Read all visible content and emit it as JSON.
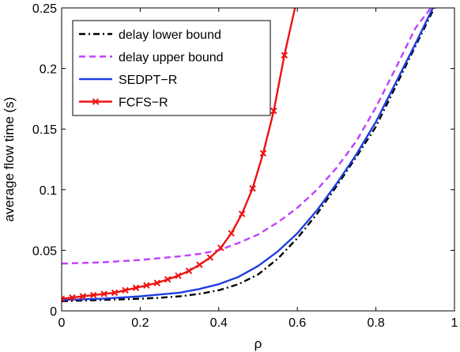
{
  "chart_data": {
    "type": "line",
    "xlabel": "ρ",
    "ylabel": "average flow time (s)",
    "xlim": [
      0,
      1
    ],
    "ylim": [
      0,
      0.25
    ],
    "x_ticks": [
      "0",
      "0.2",
      "0.4",
      "0.6",
      "0.8",
      "1"
    ],
    "y_ticks": [
      "0",
      "0.05",
      "0.1",
      "0.15",
      "0.2",
      "0.25"
    ],
    "grid": false,
    "legend_position": "top-left",
    "series": [
      {
        "name": "delay lower bound",
        "color": "#000000",
        "style": "dashdot",
        "marker": "none",
        "x": [
          0,
          0.05,
          0.1,
          0.15,
          0.2,
          0.25,
          0.3,
          0.35,
          0.4,
          0.45,
          0.5,
          0.55,
          0.6,
          0.65,
          0.7,
          0.75,
          0.8,
          0.85,
          0.9,
          0.95
        ],
        "y": [
          0.008,
          0.0085,
          0.009,
          0.0095,
          0.01,
          0.0108,
          0.012,
          0.014,
          0.017,
          0.022,
          0.03,
          0.043,
          0.06,
          0.08,
          0.103,
          0.127,
          0.152,
          0.185,
          0.218,
          0.251
        ]
      },
      {
        "name": "delay upper bound",
        "color": "#bf40ff",
        "style": "dashed",
        "marker": "none",
        "x": [
          0,
          0.05,
          0.1,
          0.15,
          0.2,
          0.25,
          0.3,
          0.35,
          0.4,
          0.45,
          0.5,
          0.55,
          0.6,
          0.65,
          0.7,
          0.75,
          0.8,
          0.85,
          0.9,
          0.94
        ],
        "y": [
          0.039,
          0.0395,
          0.04,
          0.041,
          0.042,
          0.0435,
          0.045,
          0.047,
          0.05,
          0.056,
          0.063,
          0.073,
          0.085,
          0.1,
          0.118,
          0.14,
          0.168,
          0.2,
          0.233,
          0.25
        ]
      },
      {
        "name": "SEDPT−R",
        "color": "#1f3fe0",
        "style": "solid",
        "marker": "none",
        "x": [
          0,
          0.05,
          0.1,
          0.15,
          0.2,
          0.25,
          0.3,
          0.35,
          0.4,
          0.45,
          0.5,
          0.55,
          0.6,
          0.65,
          0.7,
          0.75,
          0.8,
          0.85,
          0.9,
          0.945
        ],
        "y": [
          0.009,
          0.0095,
          0.01,
          0.011,
          0.012,
          0.0135,
          0.015,
          0.018,
          0.022,
          0.028,
          0.037,
          0.049,
          0.064,
          0.083,
          0.105,
          0.129,
          0.156,
          0.188,
          0.22,
          0.25
        ]
      },
      {
        "name": "FCFS−R",
        "color": "#ee1111",
        "style": "solid",
        "marker": "x",
        "x": [
          0,
          0.027,
          0.054,
          0.081,
          0.108,
          0.135,
          0.162,
          0.189,
          0.216,
          0.243,
          0.27,
          0.297,
          0.324,
          0.351,
          0.378,
          0.405,
          0.432,
          0.459,
          0.486,
          0.513,
          0.54,
          0.567,
          0.594
        ],
        "y": [
          0.01,
          0.011,
          0.012,
          0.013,
          0.014,
          0.015,
          0.017,
          0.019,
          0.021,
          0.023,
          0.026,
          0.029,
          0.033,
          0.038,
          0.044,
          0.052,
          0.064,
          0.08,
          0.101,
          0.13,
          0.165,
          0.211,
          0.25
        ]
      }
    ]
  }
}
